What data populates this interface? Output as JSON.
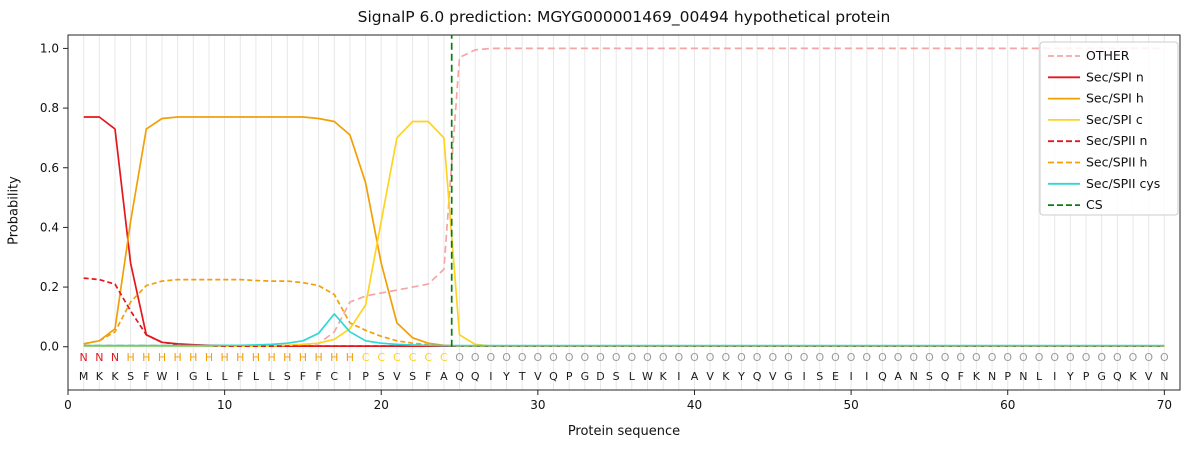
{
  "chart_data": {
    "type": "line",
    "title": "SignalP 6.0 prediction: MGYG000001469_00494 hypothetical protein",
    "xlabel": "Protein sequence",
    "ylabel": "Probability",
    "xlim": [
      0,
      71
    ],
    "ylim": [
      -0.145,
      1.045
    ],
    "xticks": [
      0,
      10,
      20,
      30,
      40,
      50,
      60,
      70
    ],
    "yticks": [
      "0.0",
      "0.2",
      "0.4",
      "0.6",
      "0.8",
      "1.0"
    ],
    "grid": "vertical-per-residue",
    "legend_position": "upper right",
    "sequence": "MKKSFWIGLLFLLSFFCIPSVSFAQQIYTVQPGDSLWKIAVKYQVGISEIIQANSQFKNPNLIYPGQKVN",
    "region_row": "NNNHHHHHHHHHHHHHHHCCCCCCOOOOOOOOOOOOOOOOOOOOOOOOOOOOOOOOOOOOOOOOOOOOOO",
    "region_colors": {
      "N": "#e3171d",
      "H": "#f2a007",
      "C": "#ffd320",
      "O": "#9b9b9b"
    },
    "series": [
      {
        "name": "OTHER",
        "color": "#f3a6a5",
        "dash": "7,4",
        "values": [
          0.005,
          0.005,
          0.005,
          0.005,
          0.005,
          0.005,
          0.005,
          0.005,
          0.005,
          0.005,
          0.005,
          0.005,
          0.005,
          0.005,
          0.007,
          0.01,
          0.05,
          0.15,
          0.17,
          0.18,
          0.19,
          0.2,
          0.21,
          0.26,
          0.97,
          0.995,
          1,
          1,
          1,
          1,
          1,
          1,
          1,
          1,
          1,
          1,
          1,
          1,
          1,
          1,
          1,
          1,
          1,
          1,
          1,
          1,
          1,
          1,
          1,
          1,
          1,
          1,
          1,
          1,
          1,
          1,
          1,
          1,
          1,
          1,
          1,
          1,
          1,
          1,
          1,
          1,
          1,
          1,
          1,
          1
        ]
      },
      {
        "name": "Sec/SPI n",
        "color": "#e3171d",
        "dash": null,
        "values": [
          0.77,
          0.77,
          0.73,
          0.28,
          0.04,
          0.015,
          0.01,
          0.007,
          0.005,
          0.004,
          0.002,
          0.002,
          0.002,
          0.002,
          0.002,
          0.002,
          0.002,
          0.002,
          0.002,
          0.002,
          0.002,
          0.002,
          0.002,
          0.002,
          0.002,
          0.002,
          0.002,
          0.002,
          0.002,
          0.002,
          0.002,
          0.002,
          0.002,
          0.002,
          0.002,
          0.002,
          0.002,
          0.002,
          0.002,
          0.002,
          0.002,
          0.002,
          0.002,
          0.002,
          0.002,
          0.002,
          0.002,
          0.002,
          0.002,
          0.002,
          0.002,
          0.002,
          0.002,
          0.002,
          0.002,
          0.002,
          0.002,
          0.002,
          0.002,
          0.002,
          0.002,
          0.002,
          0.002,
          0.002,
          0.002,
          0.002,
          0.002,
          0.002,
          0.002,
          0.002
        ]
      },
      {
        "name": "Sec/SPI h",
        "color": "#f2a007",
        "dash": null,
        "values": [
          0.01,
          0.02,
          0.06,
          0.42,
          0.73,
          0.765,
          0.77,
          0.77,
          0.77,
          0.77,
          0.77,
          0.77,
          0.77,
          0.77,
          0.77,
          0.765,
          0.755,
          0.71,
          0.55,
          0.28,
          0.08,
          0.03,
          0.012,
          0.005,
          0.002,
          0.002,
          0.002,
          0.002,
          0.002,
          0.002,
          0.002,
          0.002,
          0.002,
          0.002,
          0.002,
          0.002,
          0.002,
          0.002,
          0.002,
          0.002,
          0.002,
          0.002,
          0.002,
          0.002,
          0.002,
          0.002,
          0.002,
          0.002,
          0.002,
          0.002,
          0.002,
          0.002,
          0.002,
          0.002,
          0.002,
          0.002,
          0.002,
          0.002,
          0.002,
          0.002,
          0.002,
          0.002,
          0.002,
          0.002,
          0.002,
          0.002,
          0.002,
          0.002,
          0.002,
          0.002
        ]
      },
      {
        "name": "Sec/SPI c",
        "color": "#ffd320",
        "dash": null,
        "values": [
          0.002,
          0.002,
          0.002,
          0.002,
          0.002,
          0.002,
          0.002,
          0.002,
          0.002,
          0.002,
          0.002,
          0.002,
          0.002,
          0.005,
          0.008,
          0.012,
          0.025,
          0.06,
          0.14,
          0.42,
          0.7,
          0.755,
          0.755,
          0.7,
          0.04,
          0.008,
          0.002,
          0.002,
          0.002,
          0.002,
          0.002,
          0.002,
          0.002,
          0.002,
          0.002,
          0.002,
          0.002,
          0.002,
          0.002,
          0.002,
          0.002,
          0.002,
          0.002,
          0.002,
          0.002,
          0.002,
          0.002,
          0.002,
          0.002,
          0.002,
          0.002,
          0.002,
          0.002,
          0.002,
          0.002,
          0.002,
          0.002,
          0.002,
          0.002,
          0.002,
          0.002,
          0.002,
          0.002,
          0.002,
          0.002,
          0.002,
          0.002,
          0.002,
          0.002,
          0.002
        ]
      },
      {
        "name": "Sec/SPII n",
        "color": "#e3171d",
        "dash": "5,3",
        "values": [
          0.23,
          0.225,
          0.21,
          0.12,
          0.04,
          0.015,
          0.008,
          0.005,
          0.003,
          0.002,
          0.002,
          0.002,
          0.002,
          0.002,
          0.002,
          0.002,
          0.002,
          0.002,
          0.002,
          0.002,
          0.002,
          0.002,
          0.002,
          0.002,
          0.002,
          0.002,
          0.002,
          0.002,
          0.002,
          0.002,
          0.002,
          0.002,
          0.002,
          0.002,
          0.002,
          0.002,
          0.002,
          0.002,
          0.002,
          0.002,
          0.002,
          0.002,
          0.002,
          0.002,
          0.002,
          0.002,
          0.002,
          0.002,
          0.002,
          0.002,
          0.002,
          0.002,
          0.002,
          0.002,
          0.002,
          0.002,
          0.002,
          0.002,
          0.002,
          0.002,
          0.002,
          0.002,
          0.002,
          0.002,
          0.002,
          0.002,
          0.002,
          0.002,
          0.002,
          0.002
        ]
      },
      {
        "name": "Sec/SPII h",
        "color": "#f2a007",
        "dash": "5,3",
        "values": [
          0.01,
          0.02,
          0.05,
          0.15,
          0.205,
          0.22,
          0.225,
          0.225,
          0.225,
          0.225,
          0.225,
          0.222,
          0.22,
          0.22,
          0.215,
          0.205,
          0.175,
          0.08,
          0.055,
          0.035,
          0.02,
          0.012,
          0.007,
          0.004,
          0.002,
          0.002,
          0.002,
          0.002,
          0.002,
          0.002,
          0.002,
          0.002,
          0.002,
          0.002,
          0.002,
          0.002,
          0.002,
          0.002,
          0.002,
          0.002,
          0.002,
          0.002,
          0.002,
          0.002,
          0.002,
          0.002,
          0.002,
          0.002,
          0.002,
          0.002,
          0.002,
          0.002,
          0.002,
          0.002,
          0.002,
          0.002,
          0.002,
          0.002,
          0.002,
          0.002,
          0.002,
          0.002,
          0.002,
          0.002,
          0.002,
          0.002,
          0.002,
          0.002,
          0.002,
          0.002
        ]
      },
      {
        "name": "Sec/SPII cys",
        "color": "#2fd8d8",
        "dash": null,
        "values": [
          0.004,
          0.004,
          0.004,
          0.004,
          0.004,
          0.004,
          0.004,
          0.004,
          0.004,
          0.005,
          0.005,
          0.006,
          0.008,
          0.012,
          0.02,
          0.045,
          0.11,
          0.05,
          0.02,
          0.012,
          0.008,
          0.006,
          0.005,
          0.004,
          0.004,
          0.004,
          0.004,
          0.004,
          0.004,
          0.004,
          0.004,
          0.004,
          0.004,
          0.004,
          0.004,
          0.004,
          0.004,
          0.004,
          0.004,
          0.004,
          0.004,
          0.004,
          0.004,
          0.004,
          0.004,
          0.004,
          0.004,
          0.004,
          0.004,
          0.004,
          0.004,
          0.004,
          0.004,
          0.004,
          0.004,
          0.004,
          0.004,
          0.004,
          0.004,
          0.004,
          0.004,
          0.004,
          0.004,
          0.004,
          0.004,
          0.004,
          0.004,
          0.004,
          0.004,
          0.004
        ]
      }
    ],
    "cs": {
      "label": "CS",
      "position": 24.5,
      "color": "#0a7e0a",
      "dash": "7,4"
    }
  }
}
